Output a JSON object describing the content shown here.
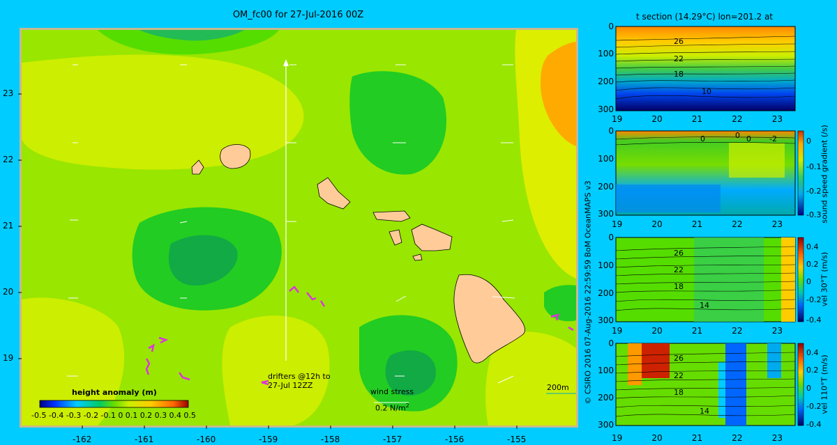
{
  "main_map": {
    "title": "OM_fc00 for 27-Jul-2016 00Z",
    "lon_ticks": [
      "-162",
      "-161",
      "-160",
      "-159",
      "-158",
      "-157",
      "-156",
      "-155"
    ],
    "lat_ticks": [
      "23",
      "22",
      "21",
      "20",
      "19"
    ],
    "drifters_label_1": "drifters @12h to",
    "drifters_label_2": "27-Jul 12ZZ",
    "wind_label": "wind stress",
    "wind_scale": "0.2 N/m",
    "wind_scale_sup": "2",
    "depth_label": "200m",
    "colorbar_title": "height anomaly (m)",
    "colorbar_ticks": [
      "-0.5",
      "-0.4",
      "-0.3",
      "-0.2",
      "-0.1",
      "0",
      "0.1",
      "0.2",
      "0.3",
      "0.4",
      "0.5"
    ]
  },
  "sections": {
    "top_title": "t section (14.29°C) lon=201.2 at",
    "depth_ticks": [
      "0",
      "100",
      "200",
      "300"
    ],
    "lat_ticks": [
      "19",
      "20",
      "21",
      "22",
      "23"
    ],
    "panel1_contours": [
      "26",
      "22",
      "18",
      "10"
    ],
    "panel2_contours": [
      "0",
      "0",
      "0",
      "-2"
    ],
    "panel2_cb_ticks": [
      "0",
      "-0.1",
      "-0.2",
      "-0.3"
    ],
    "panel2_cb_label": "sound speed gradient (/s)",
    "panel3_contours": [
      "26",
      "22",
      "18",
      "14"
    ],
    "panel3_cb_ticks": [
      "0.4",
      "0.2",
      "0",
      "-0.2",
      "-0.4"
    ],
    "panel3_cb_label": "vel 30°T (m/s)",
    "panel4_contours": [
      "26",
      "22",
      "18",
      "14"
    ],
    "panel4_cb_ticks": [
      "0.4",
      "0.2",
      "0",
      "-0.2",
      "-0.4"
    ],
    "panel4_cb_label": "vel 110°T (m/s)"
  },
  "credit": "© CSIRO 2016  07-Aug-2016 22:59:59 BoM OceanMAPS v3",
  "colors": {
    "background": "#00ccff",
    "ocean_green": "#44d600",
    "land": "#ffcc99",
    "drifter": "#dd33dd"
  }
}
